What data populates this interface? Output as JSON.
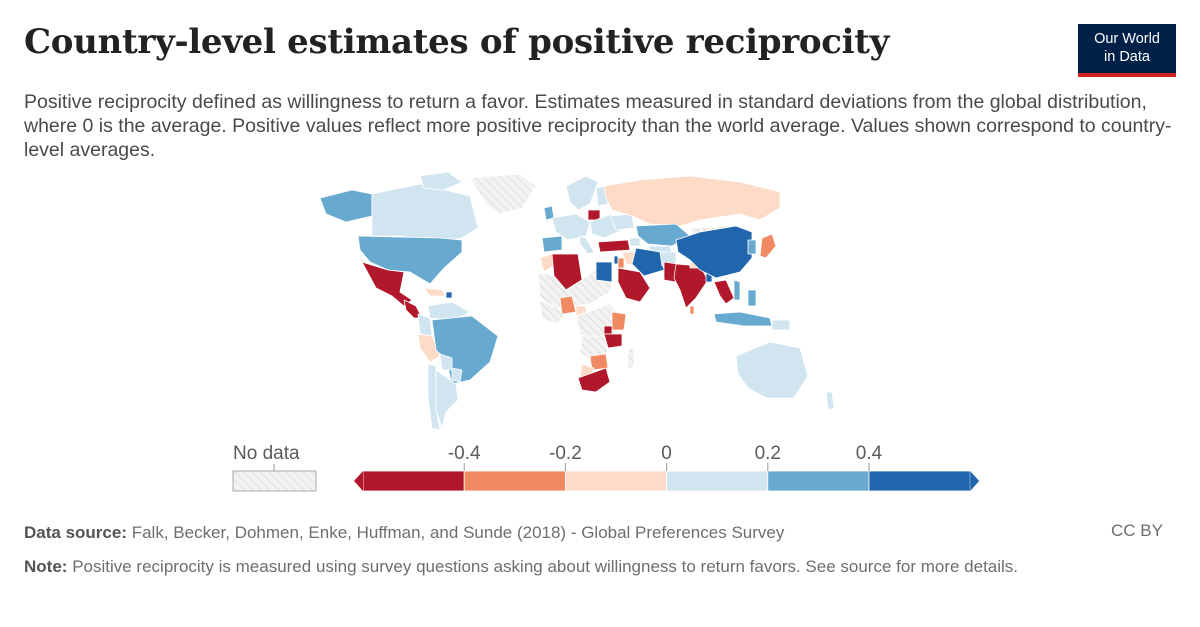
{
  "title": "Country-level estimates of positive reciprocity",
  "subtitle": "Positive reciprocity defined as willingness to return a favor. Estimates measured in standard deviations from the global distribution, where 0 is the average. Positive values reflect more positive reciprocity than the world average. Values shown correspond to country-level averages.",
  "logo": {
    "line1": "Our World",
    "line2": "in Data"
  },
  "legend": {
    "no_data_label": "No data",
    "ticks": [
      "-0.4",
      "-0.2",
      "0",
      "0.2",
      "0.4"
    ],
    "colors": [
      "#b2182b",
      "#ef8a62",
      "#fddbc7",
      "#d1e5f0",
      "#67a9cf",
      "#2166ac"
    ]
  },
  "colors": {
    "no_data": "#f2f2f2",
    "border": "#ffffff",
    "hatch": "#cccccc"
  },
  "footer": {
    "source_label": "Data source:",
    "source_text": "Falk, Becker, Dohmen, Enke, Huffman, and Sunde (2018) - Global Preferences Survey",
    "note_label": "Note:",
    "note_text": "Positive reciprocity is measured using survey questions asking about willingness to return favors. See source for more details.",
    "license": "CC BY"
  }
}
